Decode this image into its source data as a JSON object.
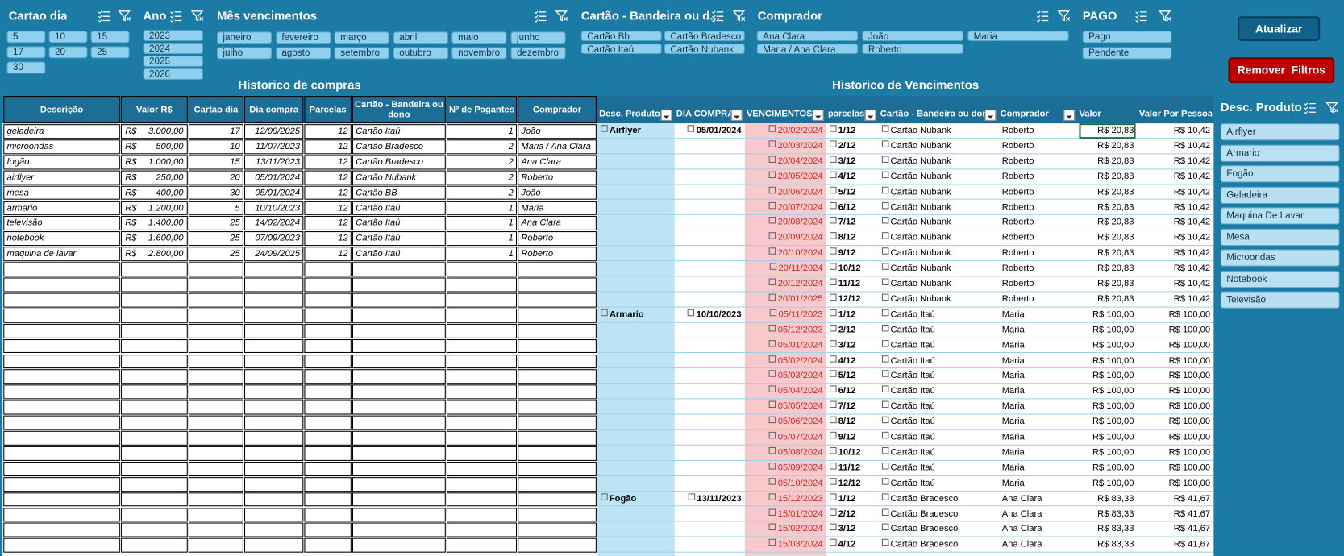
{
  "slicers": {
    "cartao_dia": {
      "title": "Cartao dia",
      "items": [
        "5",
        "10",
        "15",
        "17",
        "20",
        "25",
        "30"
      ]
    },
    "ano": {
      "title": "Ano",
      "items": [
        "2023",
        "2024",
        "2025",
        "2026"
      ]
    },
    "mes": {
      "title": "Mês vencimentos",
      "items": [
        "janeiro",
        "fevereiro",
        "março",
        "abril",
        "maio",
        "junho",
        "julho",
        "agosto",
        "setembro",
        "outubro",
        "novembro",
        "dezembro"
      ]
    },
    "bandeira": {
      "title": "Cartão - Bandeira ou d...",
      "items": [
        "Cartão Bb",
        "Cartão Bradesco",
        "Cartão Itaú",
        "Cartão Nubank"
      ]
    },
    "comprador": {
      "title": "Comprador",
      "items": [
        "Ana Clara",
        "João",
        "Maria",
        "Maria / Ana Clara",
        "Roberto"
      ]
    },
    "pago": {
      "title": "PAGO",
      "items": [
        "Pago",
        "Pendente"
      ]
    }
  },
  "buttons": {
    "refresh": "Atualizar",
    "clear_filters": "Remover  Filtros"
  },
  "purchases": {
    "title": "Historico de compras",
    "columns": [
      "Descrição",
      "Valor R$",
      "Cartao dia",
      "Dia compra",
      "Parcelas",
      "Cartão - Bandeira ou dono",
      "Nº de Pagantes",
      "Comprador"
    ],
    "rows": [
      [
        "geladeira",
        "R$",
        "3.000,00",
        "17",
        "12/09/2025",
        "12",
        "Cartão Itaú",
        "1",
        "João"
      ],
      [
        "microondas",
        "R$",
        "500,00",
        "10",
        "11/07/2023",
        "12",
        "Cartão Bradesco",
        "2",
        "Maria / Ana Clara"
      ],
      [
        "fogão",
        "R$",
        "1.000,00",
        "15",
        "13/11/2023",
        "12",
        "Cartão Bradesco",
        "2",
        "Ana Clara"
      ],
      [
        "airflyer",
        "R$",
        "250,00",
        "20",
        "05/01/2024",
        "12",
        "Cartão Nubank",
        "2",
        "Roberto"
      ],
      [
        "mesa",
        "R$",
        "400,00",
        "30",
        "05/01/2024",
        "12",
        "Cartão BB",
        "2",
        "João"
      ],
      [
        "armario",
        "R$",
        "1.200,00",
        "5",
        "10/10/2023",
        "12",
        "Cartão Itaú",
        "1",
        "Maria"
      ],
      [
        "televisão",
        "R$",
        "1.400,00",
        "25",
        "14/02/2024",
        "12",
        "Cartão Itaú",
        "1",
        "Ana Clara"
      ],
      [
        "notebook",
        "R$",
        "1.600,00",
        "25",
        "07/09/2023",
        "12",
        "Cartão Itaú",
        "1",
        "Roberto"
      ],
      [
        "maquina de lavar",
        "R$",
        "2.800,00",
        "25",
        "24/09/2025",
        "12",
        "Cartão Itaú",
        "1",
        "Roberto"
      ]
    ]
  },
  "installments": {
    "title": "Historico de Vencimentos",
    "columns": [
      "Desc. Produto",
      "DIA COMPRA",
      "VENCIMENTOS",
      "parcelas",
      "Cartão - Bandeira ou dono",
      "Comprador",
      "Valor",
      "Valor Por Pessoa"
    ],
    "groups": [
      {
        "product": "Airflyer",
        "purchase_date": "05/01/2024",
        "rows": [
          [
            "20/02/2024",
            "1/12",
            "Cartão Nubank",
            "Roberto",
            "R$ 20,83",
            "R$ 10,42"
          ],
          [
            "20/03/2024",
            "2/12",
            "Cartão Nubank",
            "Roberto",
            "R$ 20,83",
            "R$ 10,42"
          ],
          [
            "20/04/2024",
            "3/12",
            "Cartão Nubank",
            "Roberto",
            "R$ 20,83",
            "R$ 10,42"
          ],
          [
            "20/05/2024",
            "4/12",
            "Cartão Nubank",
            "Roberto",
            "R$ 20,83",
            "R$ 10,42"
          ],
          [
            "20/06/2024",
            "5/12",
            "Cartão Nubank",
            "Roberto",
            "R$ 20,83",
            "R$ 10,42"
          ],
          [
            "20/07/2024",
            "6/12",
            "Cartão Nubank",
            "Roberto",
            "R$ 20,83",
            "R$ 10,42"
          ],
          [
            "20/08/2024",
            "7/12",
            "Cartão Nubank",
            "Roberto",
            "R$ 20,83",
            "R$ 10,42"
          ],
          [
            "20/09/2024",
            "8/12",
            "Cartão Nubank",
            "Roberto",
            "R$ 20,83",
            "R$ 10,42"
          ],
          [
            "20/10/2024",
            "9/12",
            "Cartão Nubank",
            "Roberto",
            "R$ 20,83",
            "R$ 10,42"
          ],
          [
            "20/11/2024",
            "10/12",
            "Cartão Nubank",
            "Roberto",
            "R$ 20,83",
            "R$ 10,42"
          ],
          [
            "20/12/2024",
            "11/12",
            "Cartão Nubank",
            "Roberto",
            "R$ 20,83",
            "R$ 10,42"
          ],
          [
            "20/01/2025",
            "12/12",
            "Cartão Nubank",
            "Roberto",
            "R$ 20,83",
            "R$ 10,42"
          ]
        ]
      },
      {
        "product": "Armario",
        "purchase_date": "10/10/2023",
        "rows": [
          [
            "05/11/2023",
            "1/12",
            "Cartão Itaú",
            "Maria",
            "R$ 100,00",
            "R$ 100,00"
          ],
          [
            "05/12/2023",
            "2/12",
            "Cartão Itaú",
            "Maria",
            "R$ 100,00",
            "R$ 100,00"
          ],
          [
            "05/01/2024",
            "3/12",
            "Cartão Itaú",
            "Maria",
            "R$ 100,00",
            "R$ 100,00"
          ],
          [
            "05/02/2024",
            "4/12",
            "Cartão Itaú",
            "Maria",
            "R$ 100,00",
            "R$ 100,00"
          ],
          [
            "05/03/2024",
            "5/12",
            "Cartão Itaú",
            "Maria",
            "R$ 100,00",
            "R$ 100,00"
          ],
          [
            "05/04/2024",
            "6/12",
            "Cartão Itaú",
            "Maria",
            "R$ 100,00",
            "R$ 100,00"
          ],
          [
            "05/05/2024",
            "7/12",
            "Cartão Itaú",
            "Maria",
            "R$ 100,00",
            "R$ 100,00"
          ],
          [
            "05/06/2024",
            "8/12",
            "Cartão Itaú",
            "Maria",
            "R$ 100,00",
            "R$ 100,00"
          ],
          [
            "05/07/2024",
            "9/12",
            "Cartão Itaú",
            "Maria",
            "R$ 100,00",
            "R$ 100,00"
          ],
          [
            "05/08/2024",
            "10/12",
            "Cartão Itaú",
            "Maria",
            "R$ 100,00",
            "R$ 100,00"
          ],
          [
            "05/09/2024",
            "11/12",
            "Cartão Itaú",
            "Maria",
            "R$ 100,00",
            "R$ 100,00"
          ],
          [
            "05/10/2024",
            "12/12",
            "Cartão Itaú",
            "Maria",
            "R$ 100,00",
            "R$ 100,00"
          ]
        ]
      },
      {
        "product": "Fogão",
        "purchase_date": "13/11/2023",
        "rows": [
          [
            "15/12/2023",
            "1/12",
            "Cartão Bradesco",
            "Ana Clara",
            "R$ 83,33",
            "R$ 41,67"
          ],
          [
            "15/01/2024",
            "2/12",
            "Cartão Bradesco",
            "Ana Clara",
            "R$ 83,33",
            "R$ 41,67"
          ],
          [
            "15/02/2024",
            "3/12",
            "Cartão Bradesco",
            "Ana Clara",
            "R$ 83,33",
            "R$ 41,67"
          ],
          [
            "15/03/2024",
            "4/12",
            "Cartão Bradesco",
            "Ana Clara",
            "R$ 83,33",
            "R$ 41,67"
          ]
        ]
      }
    ]
  },
  "product_slicer": {
    "title": "Desc. Produto",
    "items": [
      "Airflyer",
      "Armario",
      "Fogão",
      "Geladeira",
      "Maquina De Lavar",
      "Mesa",
      "Microondas",
      "Notebook",
      "Televisão"
    ]
  }
}
